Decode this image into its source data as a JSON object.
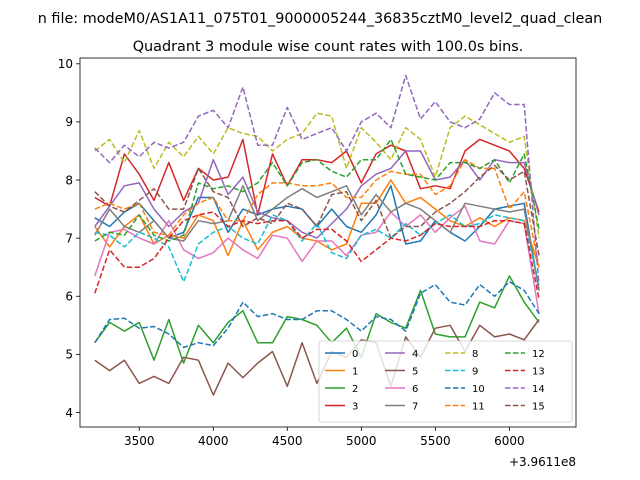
{
  "figure": {
    "suptitle": "n file: modeM0/AS1A11_075T01_9000005244_36835cztM0_level2_quad_clean",
    "title": "Quadrant 3 module wise count rates with 100.0s bins.",
    "offset_text": "+3.9611e8"
  },
  "chart_data": {
    "type": "line",
    "title": "Quadrant 3 module wise count rates with 100.0s bins.",
    "xlabel": "",
    "ylabel": "",
    "x_offset": 396110000,
    "xlim": [
      3100,
      6450
    ],
    "ylim": [
      3.75,
      10.1
    ],
    "xticks": [
      3500,
      4000,
      4500,
      5000,
      5500,
      6000
    ],
    "xtick_labels": [
      "3500",
      "4000",
      "4500",
      "5000",
      "5500",
      "6000"
    ],
    "yticks": [
      4,
      5,
      6,
      7,
      8,
      9,
      10
    ],
    "ytick_labels": [
      "4",
      "5",
      "6",
      "7",
      "8",
      "9",
      "10"
    ],
    "grid": false,
    "legend_placement": "lower-right",
    "legend_ncol": 4,
    "x": [
      3200,
      3300,
      3400,
      3500,
      3600,
      3700,
      3800,
      3900,
      4000,
      4100,
      4200,
      4300,
      4400,
      4500,
      4600,
      4700,
      4800,
      4900,
      5000,
      5100,
      5200,
      5300,
      5400,
      5500,
      5600,
      5700,
      5800,
      5900,
      6000,
      6100,
      6200
    ],
    "series": [
      {
        "name": "0",
        "color": "#1f77b4",
        "dash": "solid",
        "values": [
          7.35,
          7.2,
          7.45,
          7.6,
          7.3,
          7.0,
          7.1,
          7.7,
          7.7,
          7.1,
          7.5,
          7.4,
          7.5,
          7.55,
          7.5,
          7.2,
          7.5,
          7.2,
          7.1,
          7.4,
          7.9,
          6.9,
          6.95,
          7.3,
          7.1,
          6.95,
          7.2,
          7.5,
          7.55,
          7.6,
          6.1
        ]
      },
      {
        "name": "1",
        "color": "#ff7f0e",
        "dash": "solid",
        "values": [
          7.2,
          6.85,
          7.2,
          7.4,
          6.9,
          7.05,
          7.0,
          7.4,
          7.3,
          6.7,
          7.3,
          6.8,
          7.1,
          7.2,
          7.0,
          6.95,
          6.8,
          6.9,
          7.6,
          7.6,
          8.0,
          7.6,
          7.7,
          7.5,
          7.3,
          7.2,
          7.35,
          7.2,
          7.35,
          7.3,
          6.5
        ]
      },
      {
        "name": "2",
        "color": "#2ca02c",
        "dash": "solid",
        "values": [
          5.2,
          5.55,
          5.4,
          5.55,
          4.9,
          5.6,
          4.85,
          5.5,
          5.2,
          5.55,
          5.75,
          5.2,
          5.2,
          5.65,
          5.6,
          5.5,
          5.2,
          5.45,
          4.95,
          5.7,
          5.55,
          5.45,
          6.1,
          5.35,
          5.3,
          5.3,
          5.9,
          5.8,
          6.35,
          5.9,
          5.55
        ]
      },
      {
        "name": "3",
        "color": "#d62728",
        "dash": "solid",
        "values": [
          7.7,
          7.55,
          8.45,
          8.1,
          7.65,
          8.3,
          7.65,
          8.2,
          8.0,
          8.05,
          8.7,
          7.4,
          8.45,
          7.9,
          8.35,
          8.35,
          8.3,
          8.5,
          7.95,
          8.45,
          8.6,
          8.5,
          7.85,
          7.9,
          7.85,
          8.5,
          8.7,
          8.6,
          8.5,
          8.2,
          7.45
        ]
      },
      {
        "name": "4",
        "color": "#9467bd",
        "dash": "solid",
        "values": [
          7.2,
          7.55,
          7.9,
          7.95,
          7.5,
          7.2,
          7.45,
          7.6,
          8.35,
          7.75,
          8.05,
          7.45,
          7.35,
          7.3,
          7.1,
          7.0,
          7.25,
          7.5,
          7.9,
          8.1,
          8.2,
          8.5,
          8.5,
          8.0,
          8.05,
          8.35,
          8.0,
          8.35,
          8.3,
          8.3,
          7.4
        ]
      },
      {
        "name": "5",
        "color": "#8c564b",
        "dash": "solid",
        "values": [
          4.9,
          4.72,
          4.9,
          4.5,
          4.62,
          4.5,
          4.95,
          4.9,
          4.3,
          4.85,
          4.6,
          4.85,
          5.05,
          4.45,
          5.2,
          4.5,
          5.05,
          4.95,
          5.25,
          5.2,
          4.45,
          5.3,
          4.95,
          5.45,
          5.5,
          5.05,
          5.5,
          5.3,
          5.35,
          5.25,
          5.6
        ]
      },
      {
        "name": "6",
        "color": "#e377c2",
        "dash": "solid",
        "values": [
          6.35,
          7.1,
          7.15,
          7.0,
          6.9,
          7.3,
          6.8,
          6.65,
          6.75,
          7.0,
          6.8,
          6.65,
          7.05,
          7.0,
          6.6,
          6.95,
          6.95,
          6.7,
          7.05,
          7.1,
          7.45,
          7.2,
          7.4,
          7.1,
          7.35,
          7.55,
          6.95,
          6.9,
          7.3,
          7.25,
          5.7
        ]
      },
      {
        "name": "7",
        "color": "#7f7f7f",
        "dash": "solid",
        "values": [
          7.05,
          7.5,
          7.2,
          7.1,
          7.3,
          7.0,
          6.95,
          7.3,
          7.25,
          7.3,
          7.9,
          7.3,
          7.5,
          7.7,
          7.85,
          7.7,
          7.8,
          7.9,
          7.4,
          7.75,
          7.45,
          7.6,
          7.5,
          7.3,
          7.1,
          7.6,
          7.55,
          7.5,
          7.45,
          7.5,
          6.1
        ]
      },
      {
        "name": "8",
        "color": "#bcbd22",
        "dash": "dashed",
        "values": [
          8.5,
          8.7,
          8.3,
          8.85,
          8.2,
          8.65,
          8.4,
          8.75,
          8.45,
          8.9,
          8.8,
          8.75,
          8.5,
          8.7,
          8.8,
          9.15,
          9.1,
          8.2,
          8.9,
          8.65,
          8.35,
          8.9,
          8.7,
          8.05,
          8.9,
          9.1,
          8.95,
          8.8,
          8.65,
          8.75,
          7.0
        ]
      },
      {
        "name": "9",
        "color": "#17becf",
        "dash": "dashed",
        "values": [
          7.1,
          7.05,
          6.85,
          7.1,
          7.0,
          6.85,
          6.25,
          6.9,
          7.1,
          7.2,
          7.0,
          6.9,
          7.4,
          7.3,
          6.95,
          7.25,
          6.75,
          6.65,
          7.05,
          7.15,
          7.0,
          7.25,
          7.05,
          7.25,
          7.4,
          7.2,
          7.25,
          7.4,
          7.35,
          7.3,
          6.2
        ]
      },
      {
        "name": "10",
        "color": "#1f77b4",
        "dash": "dashed",
        "values": [
          5.2,
          5.6,
          5.62,
          5.45,
          5.48,
          5.35,
          5.12,
          5.2,
          5.15,
          5.45,
          5.9,
          5.65,
          5.7,
          5.6,
          5.6,
          5.75,
          5.75,
          5.6,
          5.4,
          5.65,
          5.6,
          5.4,
          6.05,
          6.2,
          5.9,
          5.85,
          6.2,
          6.0,
          6.25,
          6.1,
          5.7
        ]
      },
      {
        "name": "11",
        "color": "#ff7f0e",
        "dash": "dashed",
        "values": [
          7.5,
          7.6,
          7.5,
          7.6,
          7.1,
          7.05,
          7.4,
          7.6,
          7.7,
          7.3,
          7.3,
          7.75,
          7.95,
          7.95,
          7.9,
          7.9,
          7.95,
          7.7,
          7.7,
          8.0,
          8.15,
          8.1,
          8.1,
          7.75,
          7.9,
          8.35,
          8.2,
          8.2,
          7.5,
          7.8,
          6.5
        ]
      },
      {
        "name": "12",
        "color": "#2ca02c",
        "dash": "dashed",
        "values": [
          6.95,
          7.1,
          7.05,
          7.4,
          7.05,
          6.95,
          7.05,
          7.95,
          7.85,
          7.9,
          7.8,
          7.95,
          8.3,
          7.9,
          8.3,
          8.35,
          8.15,
          8.05,
          8.35,
          8.35,
          8.7,
          8.1,
          8.05,
          8.0,
          8.3,
          8.3,
          8.2,
          8.35,
          7.95,
          8.45,
          7.15
        ]
      },
      {
        "name": "13",
        "color": "#d62728",
        "dash": "dashed",
        "values": [
          6.05,
          6.8,
          6.5,
          6.5,
          6.65,
          7.0,
          7.3,
          7.4,
          7.45,
          7.2,
          7.3,
          7.25,
          7.3,
          7.3,
          7.0,
          7.15,
          7.15,
          6.95,
          6.6,
          6.8,
          7.0,
          6.95,
          7.05,
          7.25,
          7.2,
          7.2,
          7.2,
          7.3,
          7.3,
          7.25,
          5.95
        ]
      },
      {
        "name": "14",
        "color": "#9467bd",
        "dash": "dashed",
        "values": [
          8.55,
          8.3,
          8.6,
          8.4,
          8.65,
          8.55,
          8.65,
          9.1,
          9.2,
          8.9,
          9.6,
          8.6,
          8.6,
          9.25,
          8.7,
          8.8,
          8.9,
          8.5,
          9.0,
          9.15,
          8.9,
          9.8,
          9.05,
          9.35,
          9.0,
          8.9,
          9.05,
          9.5,
          9.3,
          9.3,
          6.2
        ]
      },
      {
        "name": "15",
        "color": "#8c564b",
        "dash": "dashed",
        "values": [
          7.8,
          7.55,
          7.45,
          7.65,
          7.85,
          7.5,
          7.5,
          8.2,
          7.8,
          7.7,
          7.2,
          7.35,
          7.25,
          7.6,
          7.5,
          7.2,
          7.75,
          7.8,
          7.3,
          7.65,
          7.0,
          7.2,
          7.2,
          7.45,
          7.6,
          7.8,
          8.05,
          8.25,
          8.0,
          8.15,
          6.7
        ]
      }
    ]
  }
}
